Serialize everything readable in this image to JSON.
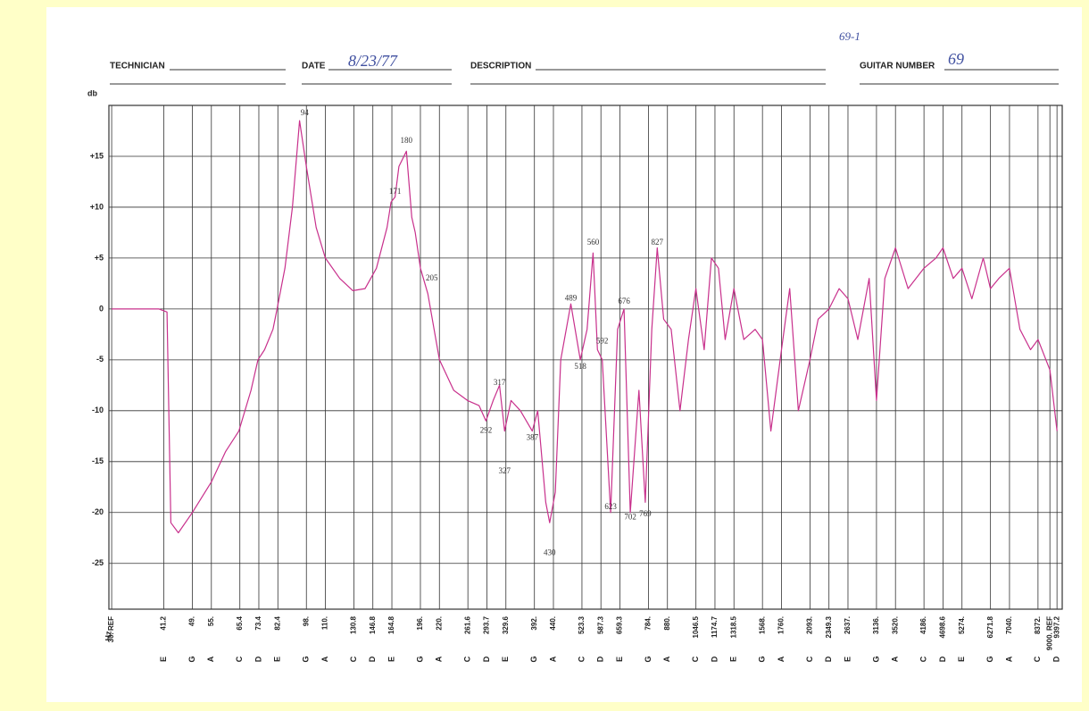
{
  "header": {
    "technician_label": "TECHNICIAN",
    "date_label": "DATE",
    "date_value": "8/23/77",
    "description_label": "DESCRIPTION",
    "guitar_label": "GUITAR NUMBER",
    "guitar_value": "69",
    "corner_note": "69-1"
  },
  "chart_data": {
    "type": "line",
    "y_label": "db",
    "x_label": "Hz",
    "log_x": true,
    "grid": true,
    "xlim": [
      29.5,
      9700
    ],
    "ylim": [
      -29.5,
      20
    ],
    "xticks": [
      {
        "value": 30,
        "label": "30. REF"
      },
      {
        "value": 41.2,
        "label": "41.2",
        "note": "E"
      },
      {
        "value": 49,
        "label": "49.",
        "note": "G"
      },
      {
        "value": 55,
        "label": "55.",
        "note": "A"
      },
      {
        "value": 65.4,
        "label": "65.4",
        "note": "C"
      },
      {
        "value": 73.4,
        "label": "73.4",
        "note": "D"
      },
      {
        "value": 82.4,
        "label": "82.4",
        "note": "E"
      },
      {
        "value": 98,
        "label": "98.",
        "note": "G"
      },
      {
        "value": 110,
        "label": "110.",
        "note": "A"
      },
      {
        "value": 130.8,
        "label": "130.8",
        "note": "C"
      },
      {
        "value": 146.8,
        "label": "146.8",
        "note": "D"
      },
      {
        "value": 164.8,
        "label": "164.8",
        "note": "E"
      },
      {
        "value": 196,
        "label": "196.",
        "note": "G"
      },
      {
        "value": 220,
        "label": "220.",
        "note": "A"
      },
      {
        "value": 261.6,
        "label": "261.6",
        "note": "C"
      },
      {
        "value": 293.7,
        "label": "293.7",
        "note": "D"
      },
      {
        "value": 329.6,
        "label": "329.6",
        "note": "E"
      },
      {
        "value": 392,
        "label": "392.",
        "note": "G"
      },
      {
        "value": 440,
        "label": "440.",
        "note": "A"
      },
      {
        "value": 523.3,
        "label": "523.3",
        "note": "C"
      },
      {
        "value": 587.3,
        "label": "587.3",
        "note": "D"
      },
      {
        "value": 659.3,
        "label": "659.3",
        "note": "E"
      },
      {
        "value": 784,
        "label": "784.",
        "note": "G"
      },
      {
        "value": 880,
        "label": "880.",
        "note": "A"
      },
      {
        "value": 1046.5,
        "label": "1046.5",
        "note": "C"
      },
      {
        "value": 1174.7,
        "label": "1174.7",
        "note": "D"
      },
      {
        "value": 1318.5,
        "label": "1318.5",
        "note": "E"
      },
      {
        "value": 1568,
        "label": "1568.",
        "note": "G"
      },
      {
        "value": 1760,
        "label": "1760.",
        "note": "A"
      },
      {
        "value": 2093,
        "label": "2093.",
        "note": "C"
      },
      {
        "value": 2349.3,
        "label": "2349.3",
        "note": "D"
      },
      {
        "value": 2637,
        "label": "2637.",
        "note": "E"
      },
      {
        "value": 3136,
        "label": "3136.",
        "note": "G"
      },
      {
        "value": 3520,
        "label": "3520.",
        "note": "A"
      },
      {
        "value": 4186,
        "label": "4186.",
        "note": "C"
      },
      {
        "value": 4698.6,
        "label": "4698.6",
        "note": "D"
      },
      {
        "value": 5274,
        "label": "5274.",
        "note": "E"
      },
      {
        "value": 6271.8,
        "label": "6271.8",
        "note": "G"
      },
      {
        "value": 7040,
        "label": "7040.",
        "note": "A"
      },
      {
        "value": 8372,
        "label": "8372.",
        "note": "C"
      },
      {
        "value": 9000,
        "label": "9000. REF"
      },
      {
        "value": 9397.2,
        "label": "9397.2",
        "note": "D"
      }
    ],
    "yticks": [
      {
        "value": 15,
        "label": "+15"
      },
      {
        "value": 10,
        "label": "+10"
      },
      {
        "value": 5,
        "label": "+5"
      },
      0,
      -5,
      -10,
      -15,
      -20,
      -25
    ],
    "x": [
      30,
      40,
      42,
      43,
      45,
      49,
      55,
      60,
      65,
      70,
      73,
      76,
      80,
      82,
      86,
      90,
      94,
      98,
      104,
      110,
      120,
      130,
      140,
      150,
      160,
      164,
      168,
      172,
      180,
      186,
      190,
      196,
      205,
      220,
      240,
      261,
      280,
      292,
      305,
      317,
      327,
      340,
      360,
      387,
      400,
      420,
      430,
      445,
      460,
      489,
      518,
      540,
      560,
      575,
      592,
      623,
      650,
      676,
      702,
      740,
      769,
      800,
      827,
      860,
      900,
      950,
      1000,
      1046,
      1100,
      1150,
      1200,
      1250,
      1318,
      1400,
      1500,
      1568,
      1650,
      1760,
      1850,
      1950,
      2093,
      2200,
      2349,
      2500,
      2637,
      2800,
      3000,
      3136,
      3300,
      3520,
      3800,
      4186,
      4500,
      4698,
      5000,
      5274,
      5600,
      6000,
      6271,
      6600,
      7040,
      7500,
      8000,
      8372,
      9000,
      9397
    ],
    "series": [
      {
        "color": "#c8308c",
        "values": [
          0,
          0,
          -0.3,
          -21,
          -22,
          -20,
          -17,
          -14,
          -12,
          -8,
          -5,
          -4,
          -2,
          0,
          4,
          10,
          18.5,
          14,
          8,
          5,
          3,
          1.8,
          2,
          4,
          8,
          10.5,
          11,
          14,
          15.5,
          9,
          7.5,
          4,
          1.5,
          -5,
          -8,
          -9,
          -9.5,
          -11,
          -9,
          -7.5,
          -12,
          -9,
          -10,
          -12,
          -10,
          -19,
          -21,
          -18,
          -5,
          0.5,
          -5,
          -2,
          5.5,
          -4,
          -5,
          -20,
          -2,
          0,
          -20,
          -8,
          -19,
          -2,
          6,
          -1,
          -2,
          -10,
          -3,
          2,
          -4,
          5,
          4,
          -3,
          2,
          -3,
          -2,
          -3,
          -12,
          -4,
          2,
          -10,
          -5,
          -1,
          0,
          2,
          1,
          -3,
          3,
          -9,
          3,
          6,
          2,
          4,
          5,
          6,
          3,
          4,
          1,
          5,
          2,
          3,
          4,
          -2,
          -4,
          -3,
          -6,
          -12
        ]
      }
    ],
    "annotations": [
      {
        "text": "94",
        "x": 97,
        "y": 19.2
      },
      {
        "text": "180",
        "x": 180,
        "y": 16.5
      },
      {
        "text": "171",
        "x": 168,
        "y": 11.5
      },
      {
        "text": "205",
        "x": 210,
        "y": 3
      },
      {
        "text": "317",
        "x": 317,
        "y": -7.3
      },
      {
        "text": "292",
        "x": 292,
        "y": -12
      },
      {
        "text": "327",
        "x": 327,
        "y": -16
      },
      {
        "text": "387",
        "x": 387,
        "y": -12.7
      },
      {
        "text": "430",
        "x": 430,
        "y": -24
      },
      {
        "text": "489",
        "x": 489,
        "y": 1
      },
      {
        "text": "518",
        "x": 518,
        "y": -5.7
      },
      {
        "text": "560",
        "x": 560,
        "y": 6.5
      },
      {
        "text": "592",
        "x": 592,
        "y": -3.2
      },
      {
        "text": "623",
        "x": 623,
        "y": -19.5
      },
      {
        "text": "676",
        "x": 676,
        "y": 0.7
      },
      {
        "text": "702",
        "x": 702,
        "y": -20.5
      },
      {
        "text": "769",
        "x": 769,
        "y": -20.2
      },
      {
        "text": "827",
        "x": 827,
        "y": 6.5
      }
    ]
  }
}
